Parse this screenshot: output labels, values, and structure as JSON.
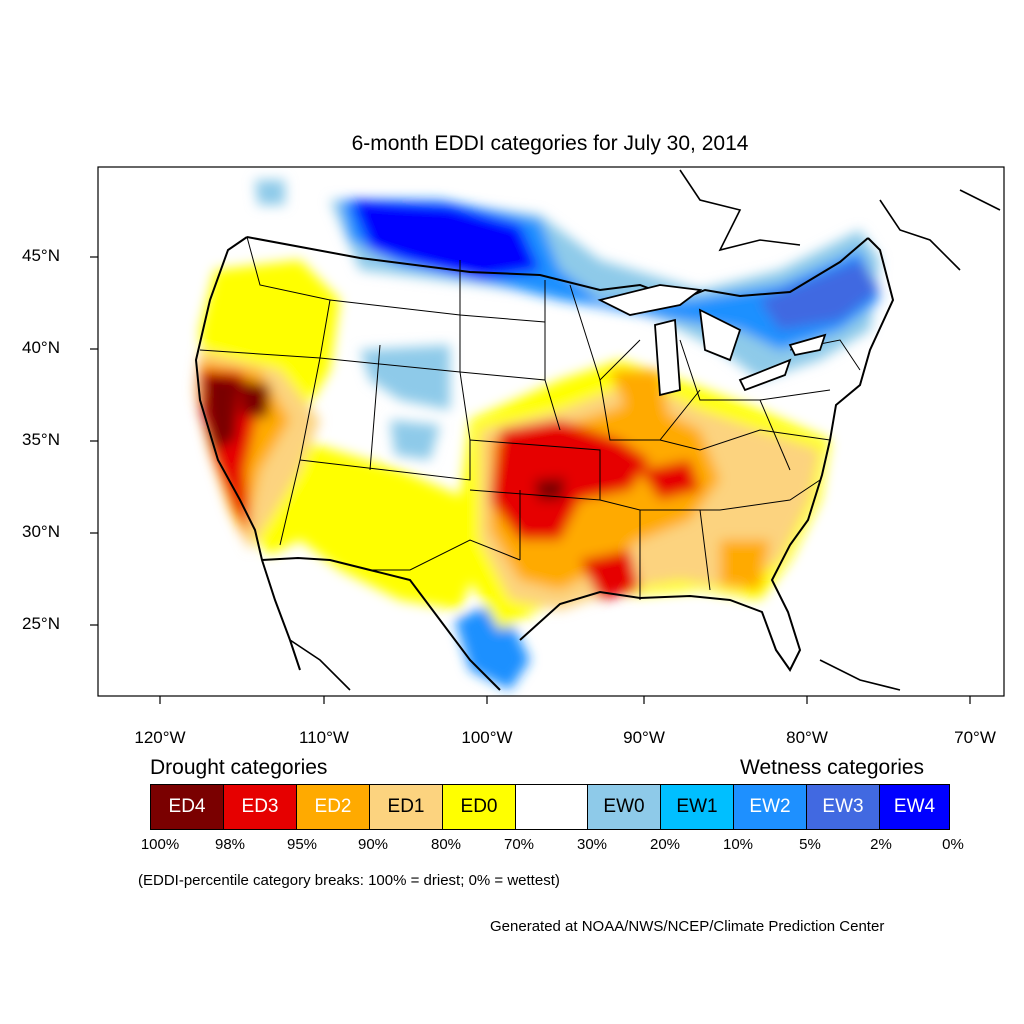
{
  "title": "6-month EDDI categories for July 30, 2014",
  "axes": {
    "lat_labels": [
      "45°N",
      "40°N",
      "35°N",
      "30°N",
      "25°N"
    ],
    "lon_labels": [
      "120°W",
      "110°W",
      "100°W",
      "90°W",
      "80°W",
      "70°W"
    ]
  },
  "legend": {
    "drought_title": "Drought categories",
    "wetness_title": "Wetness categories",
    "categories": [
      {
        "label": "ED4",
        "color": "#7a0000",
        "text_color": "#ffffff"
      },
      {
        "label": "ED3",
        "color": "#e60000",
        "text_color": "#ffffff"
      },
      {
        "label": "ED2",
        "color": "#ffaa00",
        "text_color": "#ffffff"
      },
      {
        "label": "ED1",
        "color": "#fcd37f",
        "text_color": "#000000"
      },
      {
        "label": "ED0",
        "color": "#ffff00",
        "text_color": "#000000"
      },
      {
        "label": "",
        "color": "#ffffff",
        "text_color": "#000000"
      },
      {
        "label": "EW0",
        "color": "#8ecae9",
        "text_color": "#000000"
      },
      {
        "label": "EW1",
        "color": "#00bfff",
        "text_color": "#000000"
      },
      {
        "label": "EW2",
        "color": "#1e90ff",
        "text_color": "#ffffff"
      },
      {
        "label": "EW3",
        "color": "#4169e1",
        "text_color": "#ffffff"
      },
      {
        "label": "EW4",
        "color": "#0000ff",
        "text_color": "#ffffff"
      }
    ],
    "breaks": [
      "100%",
      "98%",
      "95%",
      "90%",
      "80%",
      "70%",
      "30%",
      "20%",
      "10%",
      "5%",
      "2%",
      "0%"
    ]
  },
  "note": "(EDDI-percentile category breaks: 100% = driest; 0% = wettest)",
  "credit": "Generated at NOAA/NWS/NCEP/Climate Prediction Center"
}
